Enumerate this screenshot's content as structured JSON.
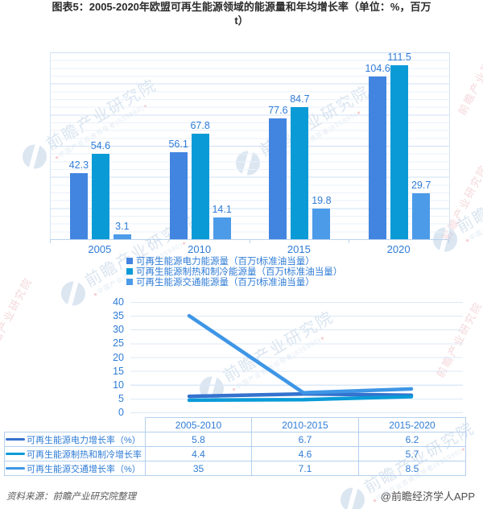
{
  "title": {
    "line1": "图表5：2005-2020年欧盟可再生能源领域的能源量和年均增长率（单位：%，百万",
    "line2": "t）"
  },
  "colors": {
    "electricity": "#4285E0",
    "heating": "#0A9BD7",
    "transport": "#4C9BE8",
    "line_electricity": "#3472CE",
    "line_heating": "#0A9BD7",
    "line_transport": "#3E96E6",
    "chart_text": "#2F7CD6",
    "grid_minor": "#E9F1FB",
    "grid_major": "#CFE0F3",
    "axis": "#B9D3EE",
    "table_border": "#B3D0EF"
  },
  "chart_data": [
    {
      "type": "bar",
      "categories": [
        "2005",
        "2010",
        "2015",
        "2020"
      ],
      "series": [
        {
          "name": "可再生能源电力能源量（百万t标准油当量）",
          "color_key": "electricity",
          "values": [
            42.3,
            56.1,
            77.6,
            104.6
          ]
        },
        {
          "name": "可再生能源制热和制冷能源量（百万t标准油当量）",
          "color_key": "heating",
          "values": [
            54.6,
            67.8,
            84.7,
            111.5
          ]
        },
        {
          "name": "可再生能源交通能源量（百万t标准油当量）",
          "color_key": "transport",
          "values": [
            3.1,
            14.1,
            19.8,
            29.7
          ]
        }
      ],
      "ylim": [
        0,
        120
      ],
      "grid": true,
      "legend_position": "bottom"
    },
    {
      "type": "line",
      "categories": [
        "2005-2010",
        "2010-2015",
        "2015-2020"
      ],
      "series": [
        {
          "name": "可再生能源电力增长率（%）",
          "color_key": "line_electricity",
          "values": [
            5.8,
            6.7,
            6.2
          ]
        },
        {
          "name": "可再生能源制热和制冷增长率",
          "color_key": "line_heating",
          "values": [
            4.4,
            4.6,
            5.7
          ]
        },
        {
          "name": "可再生能源交通增长率（%）",
          "color_key": "line_transport",
          "values": [
            35,
            7.1,
            8.5
          ]
        }
      ],
      "ylim": [
        0,
        40
      ],
      "yticks": [
        40,
        35,
        30,
        25,
        20,
        15,
        10,
        5,
        0
      ],
      "grid": true,
      "legend_position": "table-left"
    },
    {
      "type": "table",
      "columns": [
        "",
        "2005-2010",
        "2010-2015",
        "2015-2020"
      ],
      "rows": [
        {
          "label": "可再生能源电力增长率（%）",
          "color_key": "line_electricity",
          "values": [
            "5.8",
            "6.7",
            "6.2"
          ]
        },
        {
          "label": "可再生能源制热和制冷增长率",
          "color_key": "line_heating",
          "values": [
            "4.4",
            "4.6",
            "5.7"
          ]
        },
        {
          "label": "可再生能源交通增长率（%）",
          "color_key": "line_transport",
          "values": [
            "35",
            "7.1",
            "8.5"
          ]
        }
      ]
    }
  ],
  "watermark": {
    "text": "前瞻产业研究院",
    "subtext": "中国产业咨询领导者(835990)"
  },
  "footer": {
    "source": "资料来源：前瞻产业研究院整理",
    "credit": "@前瞻经济学人APP"
  }
}
